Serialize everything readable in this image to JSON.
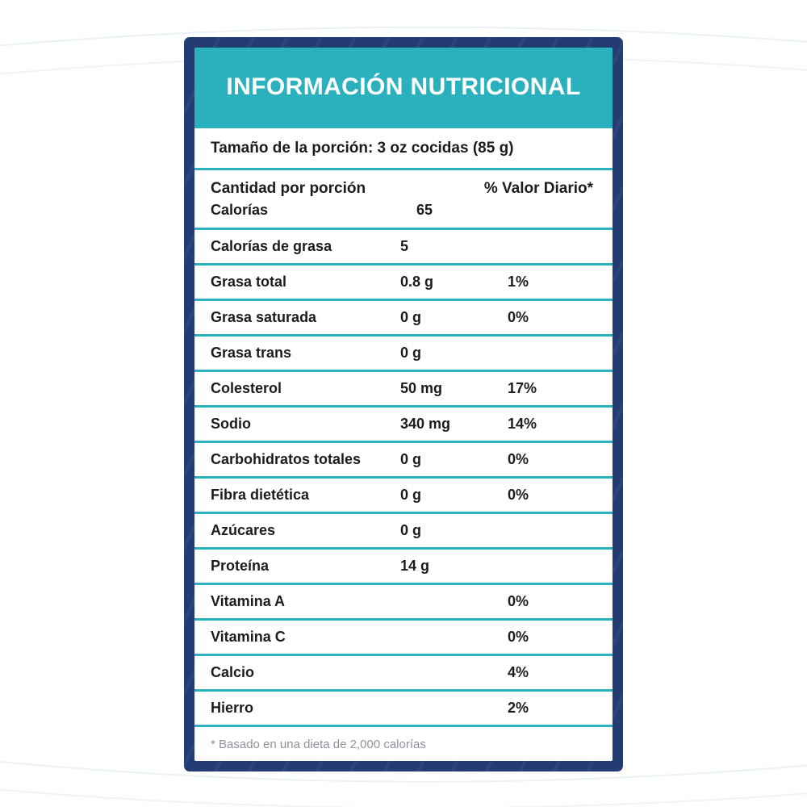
{
  "colors": {
    "navy": "#233d73",
    "teal": "#2bb1bd",
    "text": "#1c1c1c",
    "muted": "#8d939b"
  },
  "header": {
    "title": "INFORMACIÓN NUTRICIONAL"
  },
  "serving": {
    "text": "Tamaño de la porción: 3 oz cocidas (85 g)"
  },
  "columns": {
    "amount_header": "Cantidad por porción",
    "dv_header": "% Valor Diario*"
  },
  "rows": [
    {
      "label": "Calorías",
      "amount": "65",
      "dv": ""
    },
    {
      "label": "Calorías de grasa",
      "amount": "5",
      "dv": ""
    },
    {
      "label": "Grasa total",
      "amount": "0.8 g",
      "dv": "1%"
    },
    {
      "label": "Grasa saturada",
      "amount": "0 g",
      "dv": "0%"
    },
    {
      "label": "Grasa trans",
      "amount": "0 g",
      "dv": ""
    },
    {
      "label": "Colesterol",
      "amount": "50 mg",
      "dv": "17%"
    },
    {
      "label": "Sodio",
      "amount": "340 mg",
      "dv": "14%"
    },
    {
      "label": "Carbohidratos totales",
      "amount": "0 g",
      "dv": "0%"
    },
    {
      "label": "Fibra dietética",
      "amount": "0 g",
      "dv": "0%"
    },
    {
      "label": "Azúcares",
      "amount": "0 g",
      "dv": ""
    },
    {
      "label": "Proteína",
      "amount": "14 g",
      "dv": ""
    },
    {
      "label": "Vitamina A",
      "amount": "",
      "dv": "0%"
    },
    {
      "label": "Vitamina C",
      "amount": "",
      "dv": "0%"
    },
    {
      "label": "Calcio",
      "amount": "",
      "dv": "4%"
    },
    {
      "label": "Hierro",
      "amount": "",
      "dv": "2%"
    }
  ],
  "footnote": {
    "text": "* Basado en una dieta de 2,000 calorías"
  }
}
